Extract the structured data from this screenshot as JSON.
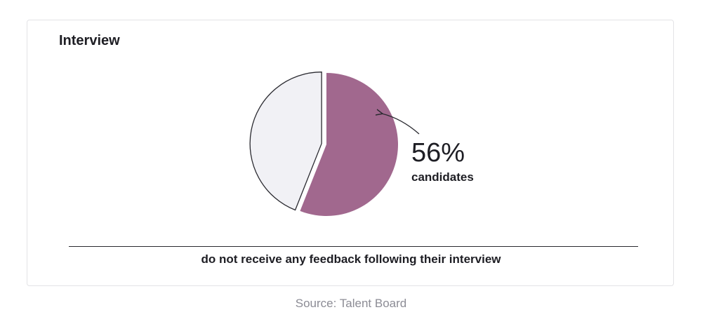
{
  "card": {
    "title": "Interview",
    "caption": "do not receive any feedback following their interview"
  },
  "callout": {
    "value": "56%",
    "label": "candidates"
  },
  "source": "Source: Talent Board",
  "colors": {
    "highlight": "#a1688e",
    "rest": "#f1f1f5",
    "outline": "#2a2a30"
  },
  "chart_data": {
    "type": "pie",
    "slices": [
      {
        "value": 56,
        "color": "#a1688e",
        "exploded": false
      },
      {
        "value": 44,
        "color": "#f1f1f5",
        "exploded": true
      }
    ],
    "start_angle": "12 o'clock",
    "direction": "clockwise",
    "legend": "none"
  }
}
